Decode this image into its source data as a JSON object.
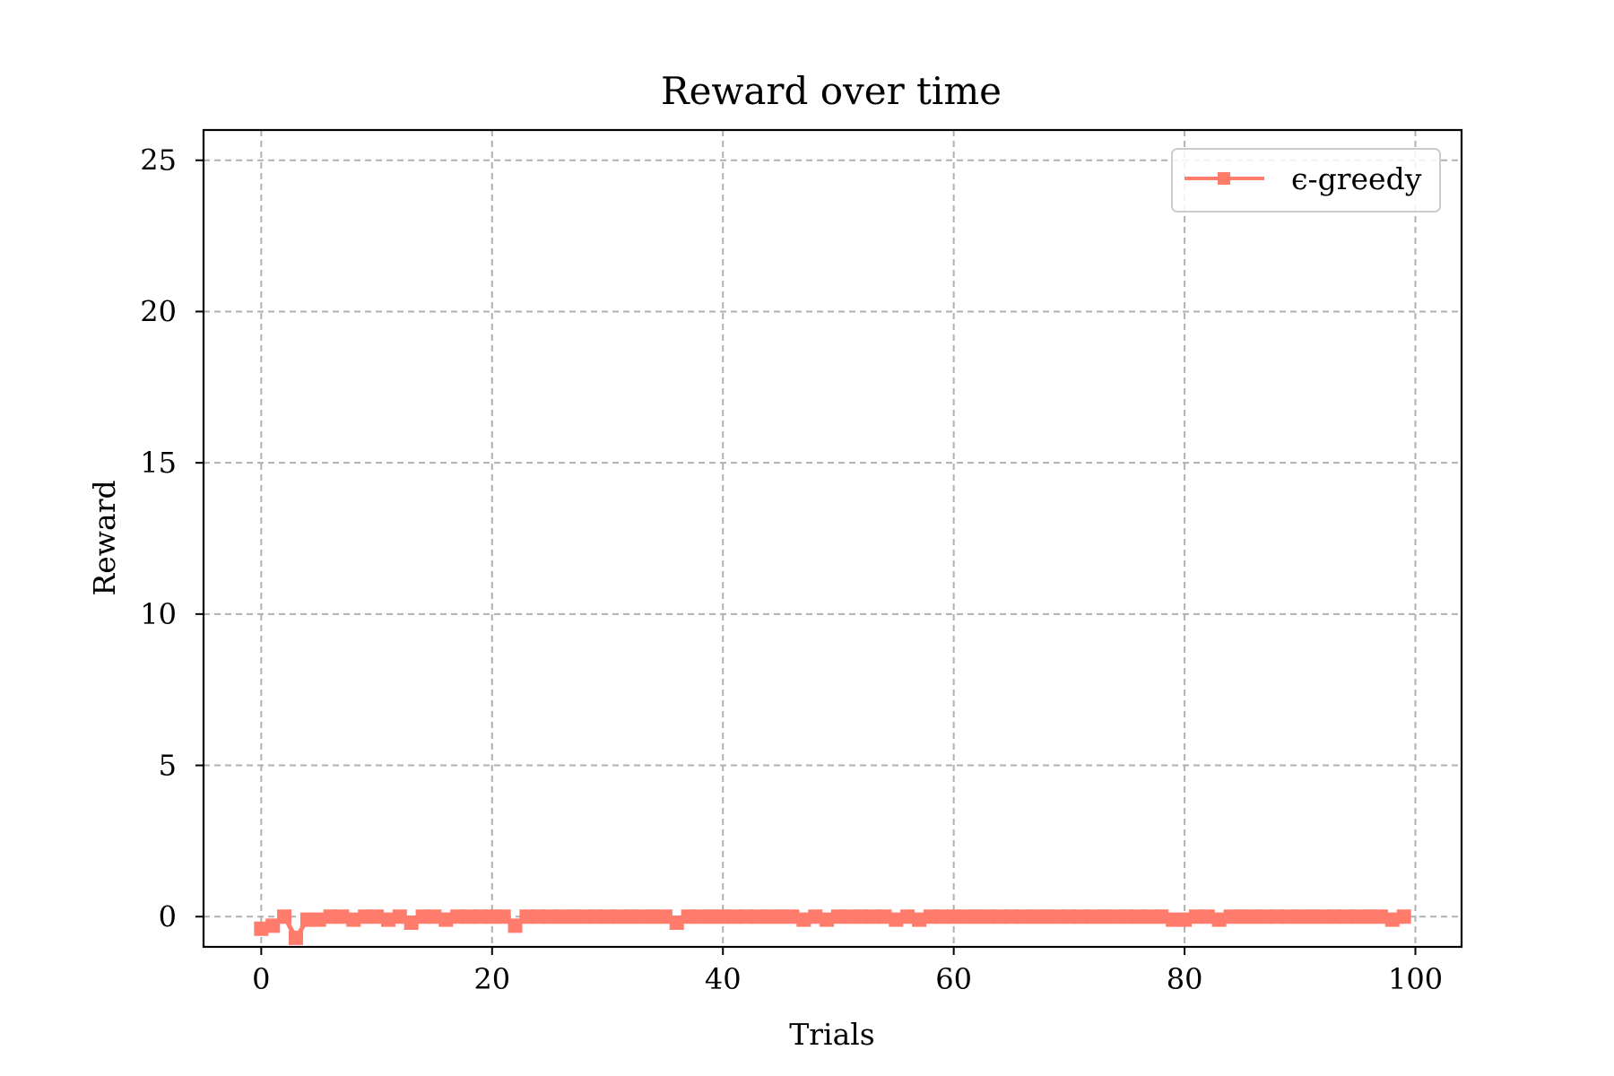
{
  "chart_data": {
    "type": "line",
    "title": "Reward over time",
    "xlabel": "Trials",
    "ylabel": "Reward",
    "xlim": [
      -5,
      104
    ],
    "ylim": [
      -1,
      26
    ],
    "xticks": [
      0,
      20,
      40,
      60,
      80,
      100
    ],
    "yticks": [
      0,
      5,
      10,
      15,
      20,
      25
    ],
    "grid": true,
    "legend_position": "top-right",
    "series": [
      {
        "name": "ϵ-greedy",
        "color": "#ff7b6b",
        "marker": "square",
        "x": [
          0,
          1,
          2,
          3,
          4,
          5,
          6,
          7,
          8,
          9,
          10,
          11,
          12,
          13,
          14,
          15,
          16,
          17,
          18,
          19,
          20,
          21,
          22,
          23,
          24,
          25,
          26,
          27,
          28,
          29,
          30,
          31,
          32,
          33,
          34,
          35,
          36,
          37,
          38,
          39,
          40,
          41,
          42,
          43,
          44,
          45,
          46,
          47,
          48,
          49,
          50,
          51,
          52,
          53,
          54,
          55,
          56,
          57,
          58,
          59,
          60,
          61,
          62,
          63,
          64,
          65,
          66,
          67,
          68,
          69,
          70,
          71,
          72,
          73,
          74,
          75,
          76,
          77,
          78,
          79,
          80,
          81,
          82,
          83,
          84,
          85,
          86,
          87,
          88,
          89,
          90,
          91,
          92,
          93,
          94,
          95,
          96,
          97,
          98,
          99
        ],
        "values": [
          -0.4,
          -0.3,
          0,
          -0.7,
          -0.1,
          -0.1,
          0,
          0,
          -0.1,
          0,
          0,
          -0.1,
          0,
          -0.2,
          0,
          0,
          -0.1,
          0,
          0,
          0,
          0,
          0,
          -0.3,
          0,
          0,
          0,
          0,
          0,
          0,
          0,
          0,
          0,
          0,
          0,
          0,
          0,
          -0.2,
          0,
          0,
          0,
          0,
          0,
          0,
          0,
          0,
          0,
          0,
          -0.1,
          0,
          -0.1,
          0,
          0,
          0,
          0,
          0,
          -0.1,
          0,
          -0.1,
          0,
          0,
          0,
          0,
          0,
          0,
          0,
          0,
          0,
          0,
          0,
          0,
          0,
          0,
          0,
          0,
          0,
          0,
          0,
          0,
          0,
          -0.1,
          -0.1,
          0,
          0,
          -0.1,
          0,
          0,
          0,
          0,
          0,
          0,
          0,
          0,
          0,
          0,
          0,
          0,
          0,
          0,
          -0.1,
          0
        ]
      }
    ]
  }
}
